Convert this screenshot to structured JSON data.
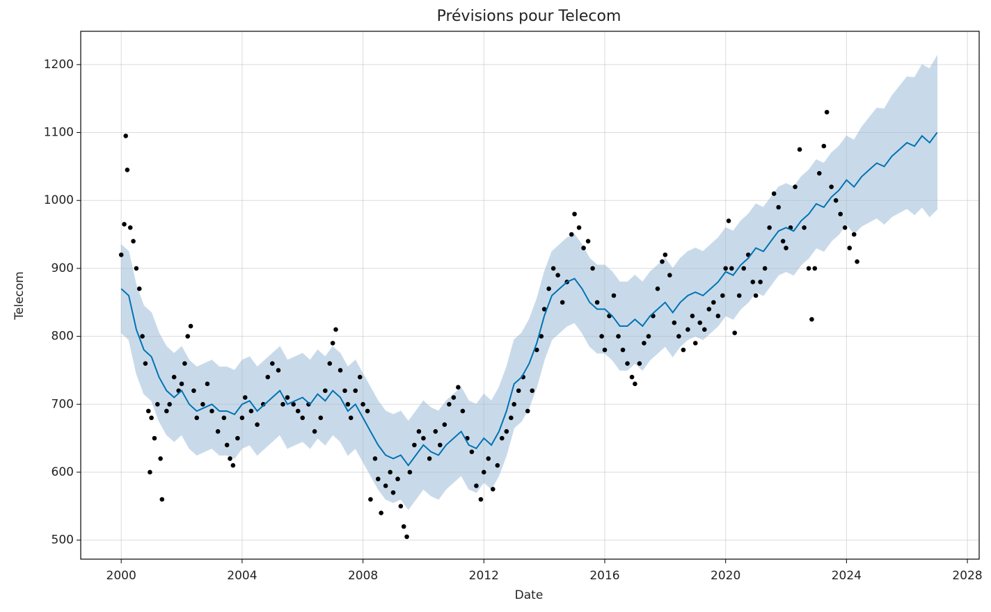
{
  "chart_data": {
    "type": "forecast",
    "title": "Prévisions pour Telecom",
    "x_label": "Date",
    "y_label": "Telecom",
    "xlim": [
      1998.66,
      2028.39
    ],
    "ylim": [
      472,
      1249
    ],
    "xticks": [
      2000,
      2004,
      2008,
      2012,
      2016,
      2020,
      2024,
      2028
    ],
    "yticks": [
      500,
      600,
      700,
      800,
      900,
      1000,
      1100,
      1200
    ],
    "grid": true,
    "forecast": {
      "color": "#0072B2",
      "band_color": "#c8daea",
      "x": [
        2000,
        2000.25,
        2000.5,
        2000.75,
        2001,
        2001.25,
        2001.5,
        2001.75,
        2002,
        2002.25,
        2002.5,
        2002.75,
        2003,
        2003.25,
        2003.5,
        2003.75,
        2004,
        2004.25,
        2004.5,
        2004.75,
        2005,
        2005.25,
        2005.5,
        2005.75,
        2006,
        2006.25,
        2006.5,
        2006.75,
        2007,
        2007.25,
        2007.5,
        2007.75,
        2008,
        2008.25,
        2008.5,
        2008.75,
        2009,
        2009.25,
        2009.5,
        2009.75,
        2010,
        2010.25,
        2010.5,
        2010.75,
        2011,
        2011.25,
        2011.5,
        2011.75,
        2012,
        2012.25,
        2012.5,
        2012.75,
        2013,
        2013.25,
        2013.5,
        2013.75,
        2014,
        2014.25,
        2014.5,
        2014.75,
        2015,
        2015.25,
        2015.5,
        2015.75,
        2016,
        2016.25,
        2016.5,
        2016.75,
        2017,
        2017.25,
        2017.5,
        2017.75,
        2018,
        2018.25,
        2018.5,
        2018.75,
        2019,
        2019.25,
        2019.5,
        2019.75,
        2020,
        2020.25,
        2020.5,
        2020.75,
        2021,
        2021.25,
        2021.5,
        2021.75,
        2022,
        2022.25,
        2022.5,
        2022.75,
        2023,
        2023.25,
        2023.5,
        2023.75,
        2024,
        2024.25,
        2024.5,
        2024.75,
        2025,
        2025.25,
        2025.5,
        2025.75,
        2026,
        2026.25,
        2026.5,
        2026.75,
        2027
      ],
      "yhat": [
        870,
        860,
        810,
        780,
        770,
        740,
        720,
        710,
        720,
        700,
        690,
        695,
        700,
        690,
        690,
        685,
        700,
        705,
        690,
        700,
        710,
        720,
        700,
        705,
        710,
        700,
        715,
        705,
        720,
        710,
        690,
        700,
        680,
        660,
        640,
        625,
        620,
        625,
        610,
        625,
        640,
        630,
        625,
        640,
        650,
        660,
        640,
        635,
        650,
        640,
        660,
        690,
        730,
        740,
        760,
        790,
        830,
        860,
        870,
        880,
        885,
        870,
        850,
        840,
        840,
        830,
        815,
        815,
        825,
        815,
        830,
        840,
        850,
        835,
        850,
        860,
        865,
        860,
        870,
        880,
        895,
        890,
        905,
        915,
        930,
        925,
        940,
        955,
        960,
        955,
        970,
        980,
        995,
        990,
        1005,
        1015,
        1030,
        1020,
        1035,
        1045,
        1055,
        1050,
        1065,
        1075,
        1085,
        1080,
        1095,
        1085,
        1100
      ],
      "lower": [
        805,
        795,
        745,
        715,
        705,
        675,
        655,
        645,
        655,
        635,
        625,
        630,
        635,
        625,
        625,
        620,
        635,
        640,
        625,
        635,
        645,
        655,
        635,
        640,
        645,
        635,
        650,
        640,
        655,
        645,
        625,
        635,
        615,
        595,
        575,
        560,
        555,
        560,
        545,
        560,
        575,
        565,
        560,
        575,
        585,
        595,
        575,
        570,
        585,
        575,
        595,
        625,
        665,
        675,
        695,
        725,
        765,
        795,
        805,
        815,
        820,
        805,
        785,
        775,
        775,
        765,
        750,
        750,
        760,
        750,
        765,
        775,
        785,
        770,
        785,
        795,
        800,
        795,
        805,
        815,
        830,
        825,
        840,
        850,
        865,
        860,
        875,
        890,
        895,
        890,
        905,
        915,
        930,
        925,
        940,
        950,
        965,
        951,
        962,
        968,
        974,
        965,
        976,
        982,
        988,
        979,
        990,
        976,
        987
      ],
      "upper": [
        935,
        925,
        875,
        845,
        835,
        805,
        785,
        775,
        785,
        765,
        755,
        760,
        765,
        755,
        755,
        750,
        765,
        770,
        755,
        765,
        775,
        785,
        765,
        770,
        775,
        765,
        780,
        770,
        785,
        775,
        755,
        765,
        745,
        725,
        705,
        690,
        685,
        690,
        675,
        690,
        705,
        695,
        690,
        705,
        715,
        725,
        705,
        700,
        715,
        705,
        725,
        755,
        795,
        805,
        825,
        855,
        895,
        925,
        935,
        945,
        950,
        935,
        915,
        905,
        905,
        895,
        880,
        880,
        890,
        880,
        895,
        905,
        915,
        900,
        915,
        925,
        930,
        925,
        935,
        945,
        960,
        955,
        970,
        980,
        995,
        990,
        1005,
        1020,
        1025,
        1020,
        1035,
        1045,
        1060,
        1055,
        1070,
        1080,
        1095,
        1089,
        1108,
        1122,
        1136,
        1135,
        1154,
        1168,
        1182,
        1181,
        1200,
        1194,
        1213
      ]
    },
    "observed": {
      "color": "#000000",
      "x": [
        2000,
        2000.1,
        2000.15,
        2000.2,
        2000.3,
        2000.4,
        2000.5,
        2000.6,
        2000.7,
        2000.8,
        2000.9,
        2000.95,
        2001,
        2001.1,
        2001.2,
        2001.3,
        2001.35,
        2001.5,
        2001.6,
        2001.75,
        2001.9,
        2002,
        2002.1,
        2002.2,
        2002.3,
        2002.4,
        2002.5,
        2002.7,
        2002.85,
        2003,
        2003.2,
        2003.4,
        2003.5,
        2003.6,
        2003.7,
        2003.85,
        2004,
        2004.1,
        2004.3,
        2004.5,
        2004.7,
        2004.85,
        2005,
        2005.2,
        2005.35,
        2005.5,
        2005.7,
        2005.85,
        2006,
        2006.2,
        2006.4,
        2006.6,
        2006.75,
        2006.9,
        2007,
        2007.1,
        2007.25,
        2007.4,
        2007.5,
        2007.6,
        2007.75,
        2007.9,
        2008,
        2008.15,
        2008.25,
        2008.4,
        2008.5,
        2008.6,
        2008.75,
        2008.9,
        2009,
        2009.15,
        2009.25,
        2009.35,
        2009.45,
        2009.55,
        2009.7,
        2009.85,
        2010,
        2010.2,
        2010.4,
        2010.55,
        2010.7,
        2010.85,
        2011,
        2011.15,
        2011.3,
        2011.45,
        2011.6,
        2011.75,
        2011.9,
        2012,
        2012.15,
        2012.3,
        2012.45,
        2012.6,
        2012.75,
        2012.9,
        2013,
        2013.15,
        2013.3,
        2013.45,
        2013.6,
        2013.75,
        2013.9,
        2014,
        2014.15,
        2014.3,
        2014.45,
        2014.6,
        2014.75,
        2014.9,
        2015,
        2015.15,
        2015.3,
        2015.45,
        2015.6,
        2015.75,
        2015.9,
        2016,
        2016.15,
        2016.3,
        2016.45,
        2016.6,
        2016.75,
        2016.9,
        2017,
        2017.15,
        2017.3,
        2017.45,
        2017.6,
        2017.75,
        2017.9,
        2018,
        2018.15,
        2018.3,
        2018.45,
        2018.6,
        2018.75,
        2018.9,
        2019,
        2019.15,
        2019.3,
        2019.45,
        2019.6,
        2019.75,
        2019.9,
        2020,
        2020.1,
        2020.2,
        2020.3,
        2020.45,
        2020.6,
        2020.75,
        2020.9,
        2021,
        2021.15,
        2021.3,
        2021.45,
        2021.6,
        2021.75,
        2021.9,
        2022,
        2022.15,
        2022.3,
        2022.45,
        2022.6,
        2022.75,
        2022.85,
        2022.95,
        2023.1,
        2023.25,
        2023.35,
        2023.5,
        2023.65,
        2023.8,
        2023.95,
        2024.1,
        2024.25,
        2024.35
      ],
      "y": [
        920,
        965,
        1095,
        1045,
        960,
        940,
        900,
        870,
        800,
        760,
        690,
        600,
        680,
        650,
        700,
        620,
        560,
        690,
        700,
        740,
        720,
        730,
        760,
        800,
        815,
        720,
        680,
        700,
        730,
        690,
        660,
        680,
        640,
        620,
        610,
        650,
        680,
        710,
        690,
        670,
        700,
        740,
        760,
        750,
        700,
        710,
        700,
        690,
        680,
        700,
        660,
        680,
        720,
        760,
        790,
        810,
        750,
        720,
        700,
        680,
        720,
        740,
        700,
        690,
        560,
        620,
        590,
        540,
        580,
        600,
        570,
        590,
        550,
        520,
        505,
        600,
        640,
        660,
        650,
        620,
        660,
        640,
        670,
        700,
        710,
        725,
        690,
        650,
        630,
        580,
        560,
        600,
        620,
        575,
        610,
        650,
        660,
        680,
        700,
        720,
        740,
        690,
        720,
        780,
        800,
        840,
        870,
        900,
        890,
        850,
        880,
        950,
        980,
        960,
        930,
        940,
        900,
        850,
        800,
        780,
        830,
        860,
        800,
        780,
        760,
        740,
        730,
        760,
        790,
        800,
        830,
        870,
        910,
        920,
        890,
        820,
        800,
        780,
        810,
        830,
        790,
        820,
        810,
        840,
        850,
        830,
        860,
        900,
        970,
        900,
        805,
        860,
        900,
        920,
        880,
        860,
        880,
        900,
        960,
        1010,
        990,
        940,
        930,
        960,
        1020,
        1075,
        960,
        900,
        825,
        900,
        1040,
        1080,
        1130,
        1020,
        1000,
        980,
        960,
        930,
        950,
        910
      ]
    }
  }
}
